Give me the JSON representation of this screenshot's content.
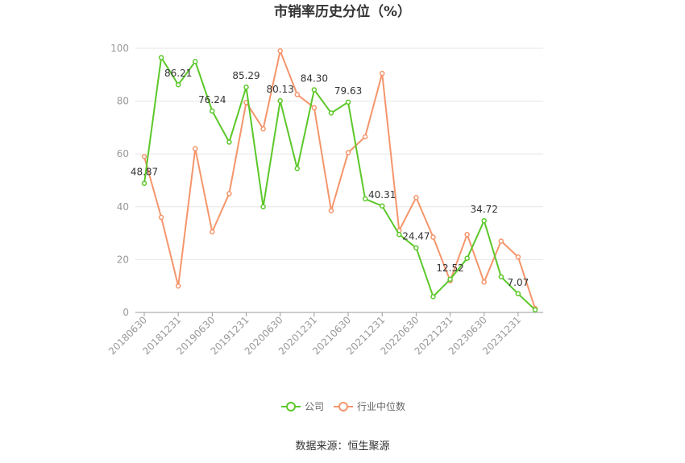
{
  "chart_data": {
    "type": "line",
    "title": "市销率历史分位（%）",
    "xlabel": "",
    "ylabel": "",
    "ylim": [
      0,
      100
    ],
    "yticks": [
      0,
      20,
      40,
      60,
      80,
      100
    ],
    "grid": true,
    "legend_position": "bottom-center",
    "x": [
      "20180630",
      "20180930",
      "20181231",
      "20190331",
      "20190630",
      "20190930",
      "20191231",
      "20200331",
      "20200630",
      "20200930",
      "20201231",
      "20210331",
      "20210630",
      "20210930",
      "20211231",
      "20220331",
      "20220630",
      "20220930",
      "20221231",
      "20230331",
      "20230630",
      "20230930",
      "20231231",
      "20240331"
    ],
    "x_tick_labels": [
      "20180630",
      "20181231",
      "20190630",
      "20191231",
      "20200630",
      "20201231",
      "20210630",
      "20211231",
      "20220630",
      "20221231",
      "20230630",
      "20231231"
    ],
    "series": [
      {
        "name": "公司",
        "color": "#5cc72a",
        "values": [
          48.87,
          96.5,
          86.21,
          95.0,
          76.24,
          64.5,
          85.29,
          40.0,
          80.13,
          54.5,
          84.3,
          75.5,
          79.63,
          43.0,
          40.31,
          29.5,
          24.47,
          6.0,
          12.52,
          20.5,
          34.72,
          13.5,
          7.07,
          1.0
        ],
        "labels": [
          "48.87",
          "",
          "86.21",
          "",
          "76.24",
          "",
          "85.29",
          "",
          "80.13",
          "",
          "84.30",
          "",
          "79.63",
          "",
          "40.31",
          "",
          "24.47",
          "",
          "12.52",
          "",
          "34.72",
          "",
          "7.07",
          ""
        ]
      },
      {
        "name": "行业中位数",
        "color": "#f5956b",
        "values": [
          59.0,
          36.0,
          10.0,
          62.0,
          30.5,
          45.0,
          79.5,
          69.5,
          99.0,
          82.5,
          77.5,
          38.5,
          60.5,
          66.5,
          90.5,
          31.0,
          43.5,
          28.5,
          12.0,
          29.5,
          11.5,
          27.0,
          21.0,
          1.5
        ],
        "labels": []
      }
    ]
  },
  "source": "数据来源：恒生聚源",
  "legend": {
    "items": [
      "公司",
      "行业中位数"
    ]
  }
}
